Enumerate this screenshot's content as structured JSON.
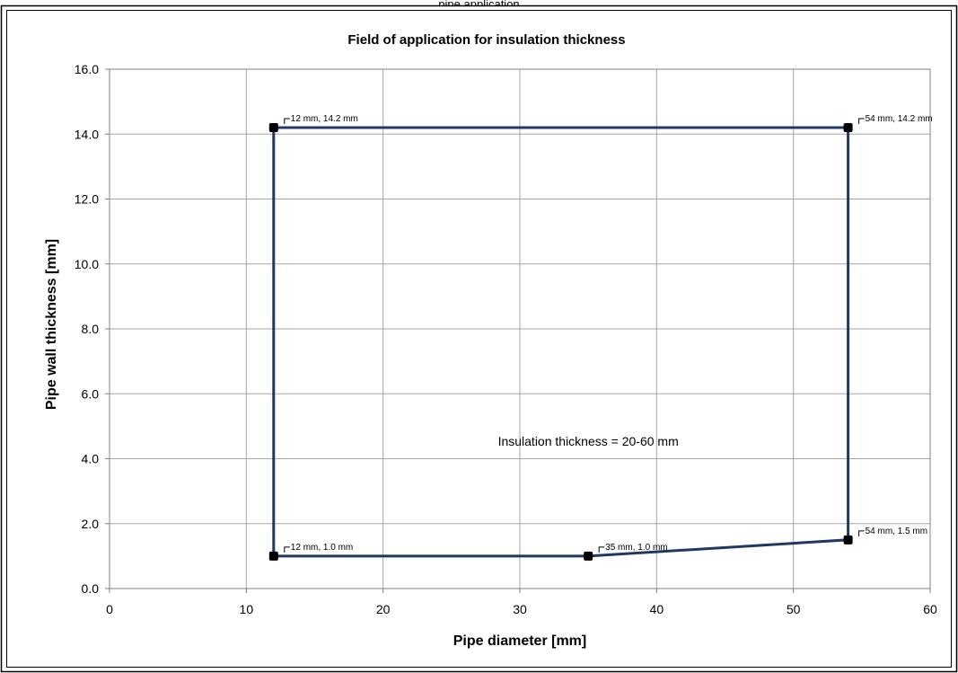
{
  "header": {
    "caption": "pipe application"
  },
  "chart_data": {
    "type": "line",
    "title": "Field of application for insulation thickness",
    "xlabel": "Pipe diameter [mm]",
    "ylabel": "Pipe wall thickness [mm]",
    "xlim": [
      0,
      60
    ],
    "ylim": [
      0,
      16
    ],
    "xticks": [
      0,
      10,
      20,
      30,
      40,
      50,
      60
    ],
    "xtick_labels": [
      "0",
      "10",
      "20",
      "30",
      "40",
      "50",
      "60"
    ],
    "yticks": [
      0,
      2,
      4,
      6,
      8,
      10,
      12,
      14,
      16
    ],
    "ytick_labels": [
      "0.0",
      "2.0",
      "4.0",
      "6.0",
      "8.0",
      "10.0",
      "12.0",
      "14.0",
      "16.0"
    ],
    "grid": true,
    "legend": "none",
    "series": [
      {
        "x": [
          12,
          12,
          35,
          54,
          54,
          12
        ],
        "y": [
          14.2,
          1.0,
          1.0,
          1.5,
          14.2,
          14.2
        ]
      }
    ],
    "points": [
      {
        "x": 12,
        "y": 14.2,
        "label": "12 mm, 14.2 mm"
      },
      {
        "x": 54,
        "y": 14.2,
        "label": "54 mm, 14.2 mm"
      },
      {
        "x": 12,
        "y": 1.0,
        "label": "12 mm, 1.0 mm"
      },
      {
        "x": 35,
        "y": 1.0,
        "label": "35 mm, 1.0 mm"
      },
      {
        "x": 54,
        "y": 1.5,
        "label": "54 mm, 1.5 mm"
      }
    ],
    "annotation": {
      "text": "Insulation thickness = 20-60 mm",
      "x": 35,
      "y": 4.4
    },
    "colors": {
      "series": "#1f3864",
      "grid": "#a6a6a6",
      "frame": "#000000"
    }
  }
}
